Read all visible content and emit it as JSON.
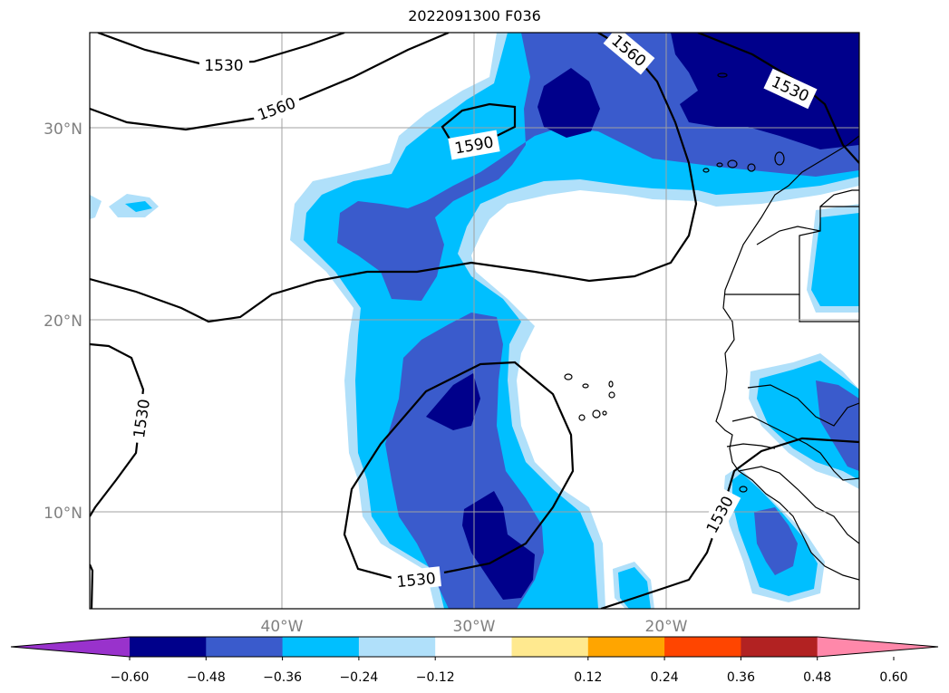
{
  "title": "2022091300 F036",
  "map": {
    "lat_ticks": [
      "30°N",
      "20°N",
      "10°N"
    ],
    "lon_ticks": [
      "40°W",
      "30°W",
      "20°W"
    ],
    "grid": true
  },
  "contours": {
    "levels": [
      "1530",
      "1560",
      "1590"
    ],
    "labels": [
      "1530",
      "1560",
      "1590",
      "1560",
      "1530",
      "1530",
      "1530",
      "1530"
    ]
  },
  "colorbar": {
    "extend": "both",
    "tick_labels": [
      "−0.60",
      "−0.48",
      "−0.36",
      "−0.24",
      "−0.12",
      "0.12",
      "0.24",
      "0.36",
      "0.48",
      "0.60"
    ],
    "colors": [
      "#9932cc",
      "#00008b",
      "#3a5bcc",
      "#00bfff",
      "#b0e0fa",
      "#ffffff",
      "#ffe98f",
      "#ffa500",
      "#ff4500",
      "#b22222",
      "#ff88aa"
    ]
  },
  "fill_colors": {
    "light": "#b0e0fa",
    "cyan": "#00bfff",
    "blue": "#3a5bcc",
    "navy": "#00008b"
  }
}
